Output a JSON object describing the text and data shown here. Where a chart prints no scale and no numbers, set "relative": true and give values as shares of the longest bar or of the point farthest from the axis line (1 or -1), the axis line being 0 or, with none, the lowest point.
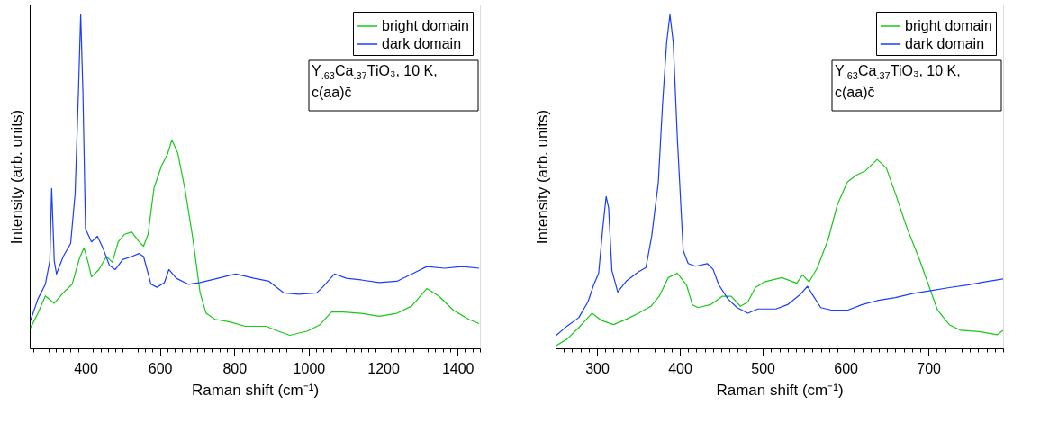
{
  "chart_data": [
    {
      "type": "line",
      "xlabel": "Raman shift (cm⁻¹)",
      "ylabel": "Intensity (arb. units)",
      "relative": true,
      "legend": "top right",
      "xlim": [
        250,
        1460
      ],
      "xticks": [
        {
          "value": 260,
          "label": null
        },
        {
          "value": 280,
          "label": null
        },
        {
          "value": 300,
          "label": null
        },
        {
          "value": 320,
          "label": null
        },
        {
          "value": 340,
          "label": null
        },
        {
          "value": 360,
          "label": null
        },
        {
          "value": 380,
          "label": null
        },
        400,
        {
          "value": 420,
          "label": null
        },
        {
          "value": 440,
          "label": null
        },
        {
          "value": 460,
          "label": null
        },
        {
          "value": 480,
          "label": null
        },
        {
          "value": 500,
          "label": null
        },
        {
          "value": 520,
          "label": null
        },
        {
          "value": 540,
          "label": null
        },
        {
          "value": 560,
          "label": null
        },
        {
          "value": 580,
          "label": null
        },
        600,
        {
          "value": 620,
          "label": null
        },
        {
          "value": 640,
          "label": null
        },
        {
          "value": 660,
          "label": null
        },
        {
          "value": 680,
          "label": null
        },
        {
          "value": 700,
          "label": null
        },
        {
          "value": 720,
          "label": null
        },
        {
          "value": 740,
          "label": null
        },
        {
          "value": 760,
          "label": null
        },
        {
          "value": 780,
          "label": null
        },
        800,
        {
          "value": 820,
          "label": null
        },
        {
          "value": 840,
          "label": null
        },
        {
          "value": 860,
          "label": null
        },
        {
          "value": 880,
          "label": null
        },
        {
          "value": 900,
          "label": null
        },
        {
          "value": 920,
          "label": null
        },
        {
          "value": 940,
          "label": null
        },
        {
          "value": 960,
          "label": null
        },
        {
          "value": 980,
          "label": null
        },
        1000,
        {
          "value": 1020,
          "label": null
        },
        {
          "value": 1040,
          "label": null
        },
        {
          "value": 1060,
          "label": null
        },
        {
          "value": 1080,
          "label": null
        },
        {
          "value": 1100,
          "label": null
        },
        {
          "value": 1120,
          "label": null
        },
        {
          "value": 1140,
          "label": null
        },
        {
          "value": 1160,
          "label": null
        },
        {
          "value": 1180,
          "label": null
        },
        1200,
        {
          "value": 1220,
          "label": null
        },
        {
          "value": 1240,
          "label": null
        },
        {
          "value": 1260,
          "label": null
        },
        {
          "value": 1280,
          "label": null
        },
        {
          "value": 1300,
          "label": null
        },
        {
          "value": 1320,
          "label": null
        },
        {
          "value": 1340,
          "label": null
        },
        {
          "value": 1360,
          "label": null
        },
        {
          "value": 1380,
          "label": null
        },
        1400,
        {
          "value": 1420,
          "label": null
        },
        {
          "value": 1440,
          "label": null
        },
        {
          "value": 1460,
          "label": null
        }
      ],
      "annotations": [
        "Y$_{.63}$Ca$_{.37}$TiO₃, 10 K,",
        "c(aa)c̄"
      ],
      "series": [
        {
          "name": "bright domain",
          "color": "#19c819",
          "x": [
            252,
            272,
            292,
            316,
            340,
            364,
            384,
            396,
            408,
            416,
            436,
            456,
            472,
            488,
            504,
            524,
            544,
            556,
            568,
            584,
            604,
            620,
            632,
            648,
            668,
            688,
            708,
            724,
            748,
            788,
            829,
            885,
            917,
            949,
            997,
            1029,
            1061,
            1093,
            1141,
            1189,
            1237,
            1277,
            1317,
            1349,
            1389,
            1430,
            1458
          ],
          "values": [
            0.061,
            0.105,
            0.157,
            0.135,
            0.166,
            0.192,
            0.271,
            0.301,
            0.253,
            0.214,
            0.236,
            0.275,
            0.258,
            0.319,
            0.341,
            0.349,
            0.319,
            0.306,
            0.341,
            0.48,
            0.546,
            0.581,
            0.624,
            0.585,
            0.472,
            0.332,
            0.166,
            0.105,
            0.087,
            0.079,
            0.066,
            0.066,
            0.052,
            0.039,
            0.052,
            0.07,
            0.109,
            0.109,
            0.105,
            0.096,
            0.105,
            0.127,
            0.179,
            0.157,
            0.114,
            0.087,
            0.074
          ]
        },
        {
          "name": "dark domain",
          "color": "#1a3cff",
          "x": [
            252,
            272,
            292,
            304,
            309,
            316,
            322,
            340,
            360,
            372,
            381,
            387,
            393,
            400,
            416,
            432,
            448,
            464,
            480,
            500,
            524,
            544,
            556,
            576,
            592,
            612,
            624,
            644,
            676,
            708,
            756,
            804,
            853,
            893,
            933,
            973,
            1021,
            1037,
            1069,
            1101,
            1141,
            1189,
            1237,
            1285,
            1317,
            1365,
            1413,
            1458
          ],
          "values": [
            0.083,
            0.148,
            0.192,
            0.262,
            0.479,
            0.262,
            0.223,
            0.275,
            0.314,
            0.463,
            0.769,
            1.0,
            0.769,
            0.358,
            0.319,
            0.336,
            0.297,
            0.249,
            0.236,
            0.266,
            0.275,
            0.284,
            0.275,
            0.192,
            0.183,
            0.197,
            0.236,
            0.21,
            0.192,
            0.197,
            0.21,
            0.223,
            0.21,
            0.201,
            0.166,
            0.162,
            0.166,
            0.183,
            0.223,
            0.21,
            0.205,
            0.197,
            0.201,
            0.227,
            0.245,
            0.24,
            0.245,
            0.24
          ]
        }
      ]
    },
    {
      "type": "line",
      "xlabel": "Raman shift (cm⁻¹)",
      "ylabel": "Intensity (arb. units)",
      "relative": true,
      "legend": "top right",
      "xlim": [
        250,
        790
      ],
      "xticks": [
        {
          "value": 250,
          "label": null
        },
        {
          "value": 260,
          "label": null
        },
        {
          "value": 270,
          "label": null
        },
        {
          "value": 280,
          "label": null
        },
        {
          "value": 290,
          "label": null
        },
        300,
        {
          "value": 310,
          "label": null
        },
        {
          "value": 320,
          "label": null
        },
        {
          "value": 330,
          "label": null
        },
        {
          "value": 340,
          "label": null
        },
        {
          "value": 350,
          "label": null
        },
        {
          "value": 360,
          "label": null
        },
        {
          "value": 370,
          "label": null
        },
        {
          "value": 380,
          "label": null
        },
        {
          "value": 390,
          "label": null
        },
        400,
        {
          "value": 410,
          "label": null
        },
        {
          "value": 420,
          "label": null
        },
        {
          "value": 430,
          "label": null
        },
        {
          "value": 440,
          "label": null
        },
        {
          "value": 450,
          "label": null
        },
        {
          "value": 460,
          "label": null
        },
        {
          "value": 470,
          "label": null
        },
        {
          "value": 480,
          "label": null
        },
        {
          "value": 490,
          "label": null
        },
        500,
        {
          "value": 510,
          "label": null
        },
        {
          "value": 520,
          "label": null
        },
        {
          "value": 530,
          "label": null
        },
        {
          "value": 540,
          "label": null
        },
        {
          "value": 550,
          "label": null
        },
        {
          "value": 560,
          "label": null
        },
        {
          "value": 570,
          "label": null
        },
        {
          "value": 580,
          "label": null
        },
        {
          "value": 590,
          "label": null
        },
        600,
        {
          "value": 610,
          "label": null
        },
        {
          "value": 620,
          "label": null
        },
        {
          "value": 630,
          "label": null
        },
        {
          "value": 640,
          "label": null
        },
        {
          "value": 650,
          "label": null
        },
        {
          "value": 660,
          "label": null
        },
        {
          "value": 670,
          "label": null
        },
        {
          "value": 680,
          "label": null
        },
        {
          "value": 690,
          "label": null
        },
        700,
        {
          "value": 710,
          "label": null
        },
        {
          "value": 720,
          "label": null
        },
        {
          "value": 730,
          "label": null
        },
        {
          "value": 740,
          "label": null
        },
        {
          "value": 750,
          "label": null
        },
        {
          "value": 760,
          "label": null
        },
        {
          "value": 770,
          "label": null
        },
        {
          "value": 780,
          "label": null
        },
        {
          "value": 790,
          "label": null
        }
      ],
      "annotations": [
        "Y$_{.63}$Ca$_{.37}$TiO₃, 10 K,",
        "c(aa)c̄"
      ],
      "series": [
        {
          "name": "bright domain",
          "color": "#19c819",
          "x": [
            250,
            264,
            278,
            289,
            294,
            305,
            320,
            336,
            350,
            365,
            375,
            386,
            397,
            408,
            415,
            422,
            437,
            451,
            462,
            473,
            482,
            491,
            502,
            523,
            541,
            548,
            556,
            566,
            579,
            590,
            602,
            613,
            624,
            631,
            638,
            649,
            660,
            674,
            689,
            700,
            711,
            725,
            739,
            761,
            783,
            790
          ],
          "values": [
            0.007,
            0.028,
            0.062,
            0.092,
            0.105,
            0.084,
            0.071,
            0.088,
            0.105,
            0.126,
            0.156,
            0.212,
            0.225,
            0.19,
            0.131,
            0.122,
            0.131,
            0.156,
            0.156,
            0.126,
            0.139,
            0.182,
            0.199,
            0.212,
            0.195,
            0.22,
            0.199,
            0.242,
            0.327,
            0.43,
            0.498,
            0.519,
            0.532,
            0.549,
            0.566,
            0.541,
            0.464,
            0.361,
            0.267,
            0.19,
            0.114,
            0.071,
            0.054,
            0.05,
            0.041,
            0.054
          ]
        },
        {
          "name": "dark domain",
          "color": "#1a3cff",
          "x": [
            250,
            264,
            278,
            289,
            296,
            302,
            307,
            311,
            314,
            318,
            325,
            336,
            350,
            359,
            366,
            374,
            379,
            384,
            388,
            392,
            397,
            404,
            410,
            419,
            433,
            440,
            447,
            458,
            469,
            482,
            494,
            516,
            530,
            545,
            554,
            559,
            570,
            584,
            602,
            620,
            638,
            660,
            682,
            703,
            725,
            747,
            768,
            790
          ],
          "values": [
            0.037,
            0.067,
            0.092,
            0.139,
            0.19,
            0.225,
            0.361,
            0.455,
            0.421,
            0.233,
            0.169,
            0.203,
            0.229,
            0.242,
            0.336,
            0.498,
            0.728,
            0.916,
            1.0,
            0.916,
            0.626,
            0.293,
            0.254,
            0.246,
            0.254,
            0.237,
            0.19,
            0.148,
            0.122,
            0.105,
            0.118,
            0.118,
            0.131,
            0.161,
            0.186,
            0.165,
            0.122,
            0.114,
            0.114,
            0.131,
            0.143,
            0.152,
            0.165,
            0.173,
            0.182,
            0.19,
            0.199,
            0.208
          ]
        }
      ]
    }
  ]
}
